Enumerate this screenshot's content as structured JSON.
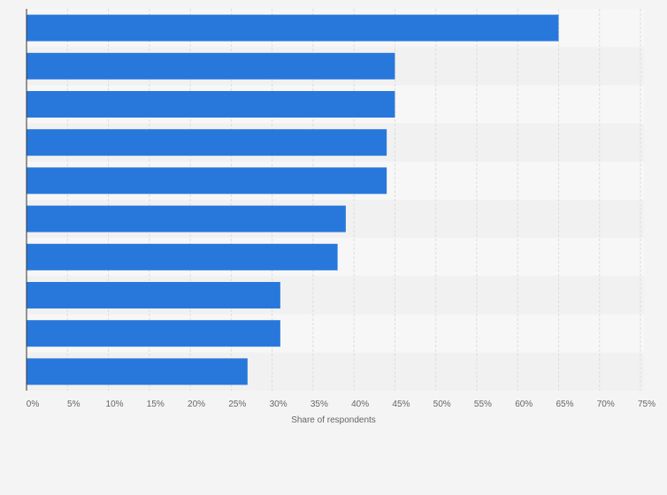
{
  "chart_data": {
    "type": "bar",
    "orientation": "horizontal",
    "categories": [
      "",
      "",
      "",
      "",
      "",
      "",
      "",
      "",
      "",
      ""
    ],
    "values": [
      65,
      45,
      45,
      44,
      44,
      39,
      38,
      31,
      31,
      27
    ],
    "title": "",
    "xlabel": "Share of respondents",
    "ylabel": "",
    "xlim": [
      0,
      75
    ],
    "x_ticks": [
      0,
      5,
      10,
      15,
      20,
      25,
      30,
      35,
      40,
      45,
      50,
      55,
      60,
      65,
      70,
      75
    ],
    "tick_labels": [
      "0%",
      "5%",
      "10%",
      "15%",
      "20%",
      "25%",
      "30%",
      "35%",
      "40%",
      "45%",
      "50%",
      "55%",
      "60%",
      "65%",
      "70%",
      "75%"
    ],
    "grid": true,
    "legend": "none"
  },
  "colors": {
    "bar": "#2878dc",
    "background": "#f4f4f4",
    "band_light": "#f7f7f7",
    "band_dark": "#f1f1f1",
    "grid": "#dddddd",
    "axis": "#333333",
    "text": "#666666"
  }
}
